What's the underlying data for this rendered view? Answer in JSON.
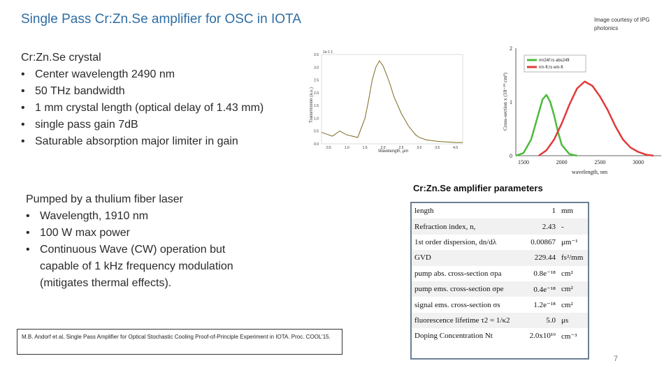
{
  "title": "Single Pass Cr:Zn.Se amplifier for OSC in IOTA",
  "image_credit": "Image courtesy of IPG photonics",
  "crystal": {
    "heading": "Cr:Zn.Se crystal",
    "bullets": [
      "Center wavelength 2490 nm",
      "50 THz bandwidth",
      "1 mm crystal length (optical delay of 1.43 mm)",
      "single pass gain 7dB",
      "Saturable absorption major limiter in gain"
    ]
  },
  "pump": {
    "heading": "Pumped by a thulium fiber laser",
    "bullets": [
      "Wavelength, 1910 nm",
      "100 W max power",
      "Continuous Wave (CW) operation but capable of 1 kHz frequency modulation (mitigates thermal effects)."
    ]
  },
  "params_title": "Cr:Zn.Se amplifier parameters",
  "params": [
    {
      "name": "length",
      "value": "1",
      "unit": "mm"
    },
    {
      "name": "Refraction index, n,",
      "value": "2.43",
      "unit": "-"
    },
    {
      "name": "1st order dispersion, dn/dλ",
      "value": "0.00867",
      "unit": "μm⁻¹"
    },
    {
      "name": "GVD",
      "value": "229.44",
      "unit": "fs²/mm"
    },
    {
      "name": "pump abs. cross-section σpa",
      "value": "0.8e⁻¹⁸",
      "unit": "cm²"
    },
    {
      "name": "pump ems. cross-section σpe",
      "value": "0.4e⁻¹⁸",
      "unit": "cm²"
    },
    {
      "name": "signal ems. cross-section σs",
      "value": "1.2e⁻¹⁸",
      "unit": "cm²"
    },
    {
      "name": "fluorescence lifetime τ2 = 1/κ2",
      "value": "5.0",
      "unit": "μs"
    },
    {
      "name": "Doping Concentration Nt",
      "value": "2.0x10¹⁹",
      "unit": "cm⁻³"
    }
  ],
  "reference": "M.B. Andorf et al, Single Pass Amplifier for Optical Stochastic Cooling Proof-of-Principle Experiment in IOTA. Proc. COOL’15.",
  "page_number": "7",
  "absorption_plot": {
    "header": "1e-1 1",
    "ylabel": "Transmission (a.u.)",
    "xlabel": "Wavelength, μm",
    "yticks": [
      "3.5",
      "3.0",
      "2.5",
      "2.0",
      "1.5",
      "1.0",
      "0.5",
      "0.0"
    ],
    "xticks": [
      "0.5",
      "1.0",
      "1.5",
      "2.0",
      "2.5",
      "3.0",
      "3.5",
      "4.0"
    ],
    "line_color": "#7a6a1e"
  },
  "cross_section_plot": {
    "ylabel": "Cross-section x (10⁻¹⁹ cm²)",
    "xlabel": "wavelength, nm",
    "yticks": [
      "2",
      "1",
      "0"
    ],
    "xticks": [
      "1500",
      "2000",
      "2500",
      "3000"
    ],
    "legend": [
      "rrn24f:rs abs24ft",
      "rrn-ft:rs em-ft"
    ],
    "colors": {
      "absorption": "#4cbb3c",
      "emission": "#e03a3a"
    }
  },
  "chart_data": [
    {
      "type": "line",
      "title": "",
      "xlabel": "Wavelength, μm",
      "ylabel": "Transmission (a.u.)",
      "xlim": [
        0.3,
        4.2
      ],
      "ylim": [
        0,
        3.5
      ],
      "series": [
        {
          "x": [
            0.3,
            0.5,
            0.6,
            0.8,
            1.0,
            1.3,
            1.5,
            1.6,
            1.7,
            1.8,
            1.9,
            2.0,
            2.1,
            2.2,
            2.3,
            2.5,
            2.7,
            2.9,
            3.0,
            3.2,
            3.5,
            4.0,
            4.2
          ],
          "y": [
            0.45,
            0.35,
            0.3,
            0.5,
            0.35,
            0.25,
            1.0,
            1.7,
            2.5,
            3.0,
            3.25,
            3.05,
            2.7,
            2.3,
            1.85,
            1.2,
            0.7,
            0.35,
            0.25,
            0.15,
            0.1,
            0.05,
            0.05
          ]
        }
      ]
    },
    {
      "type": "line",
      "title": "",
      "xlabel": "wavelength, nm",
      "ylabel": "Cross-section x (10⁻¹⁹ cm²)",
      "xlim": [
        1400,
        3300
      ],
      "ylim": [
        0,
        2
      ],
      "legend": "top-left",
      "series": [
        {
          "name": "rrn24f:rs abs24ft",
          "color": "#4cbb3c",
          "x": [
            1400,
            1500,
            1600,
            1700,
            1750,
            1800,
            1850,
            1900,
            1950,
            2000,
            2100,
            2200
          ],
          "y": [
            0.0,
            0.05,
            0.3,
            0.8,
            1.05,
            1.13,
            1.0,
            0.75,
            0.45,
            0.2,
            0.03,
            0.0
          ]
        },
        {
          "name": "rrn-ft:rs em-ft",
          "color": "#e03a3a",
          "x": [
            1700,
            1800,
            1900,
            2000,
            2100,
            2200,
            2300,
            2400,
            2500,
            2600,
            2700,
            2800,
            2900,
            3000,
            3100,
            3200
          ],
          "y": [
            0.0,
            0.1,
            0.3,
            0.6,
            0.95,
            1.25,
            1.38,
            1.3,
            1.1,
            0.85,
            0.55,
            0.3,
            0.15,
            0.07,
            0.02,
            0.0
          ]
        }
      ]
    }
  ]
}
